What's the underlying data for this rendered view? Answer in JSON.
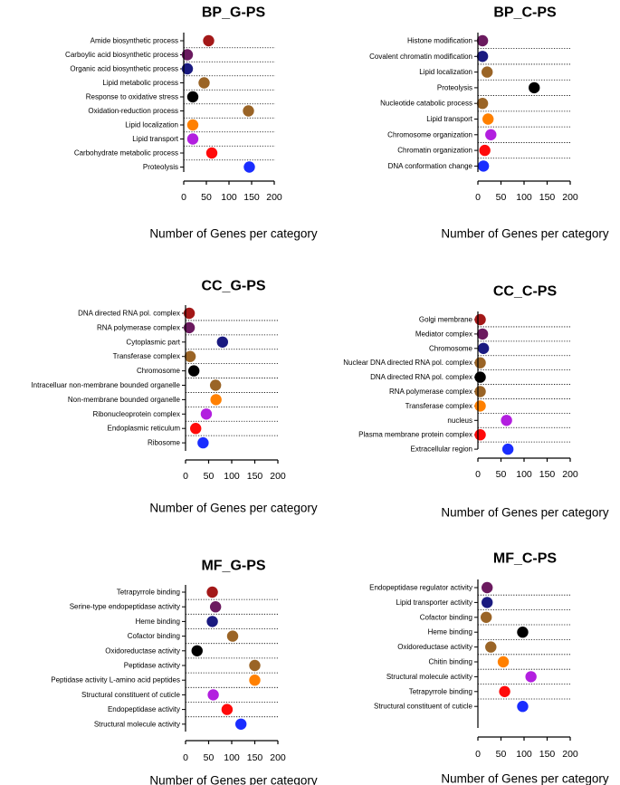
{
  "colors": {
    "maroon": "#a31818",
    "purple": "#6b1a5f",
    "navy": "#1a1a80",
    "brown": "#9a6426",
    "black": "#000000",
    "orange": "#ff8000",
    "violet": "#b21fdf",
    "red": "#ff0a0a",
    "blue": "#1a2dff"
  },
  "chart_data": [
    {
      "type": "scatter",
      "title": "BP_G-PS",
      "xlabel": "Number of Genes per category",
      "xlim": [
        0,
        200
      ],
      "xticks": [
        0,
        50,
        100,
        150,
        200
      ],
      "categories": [
        "Amide biosynthetic process",
        "Carboylic acid biosynthetic process",
        "Organic acid biosynthetic process",
        "Lipid metabolic process",
        "Response to oxidative stress",
        "Oxidation-reduction process",
        "Lipid localization",
        "Lipid transport",
        "Carbohydrate metabolic process",
        "Proteolysis"
      ],
      "values": [
        55,
        8,
        8,
        45,
        20,
        143,
        20,
        20,
        62,
        145
      ],
      "colors": [
        "maroon",
        "purple",
        "navy",
        "brown",
        "black",
        "brown",
        "orange",
        "violet",
        "red",
        "blue"
      ]
    },
    {
      "type": "scatter",
      "title": "BP_C-PS",
      "xlabel": "Number of Genes per category",
      "xlim": [
        0,
        200
      ],
      "xticks": [
        0,
        50,
        100,
        150,
        200
      ],
      "categories": [
        "Histone modification",
        "Covalent chromatin modification",
        "Lipid localization",
        "Proteolysis",
        "Nucleotide catabolic process",
        "Lipid transport",
        "Chromosome organization",
        "Chromatin organization",
        "DNA conformation change"
      ],
      "values": [
        10,
        10,
        20,
        122,
        10,
        22,
        28,
        15,
        12
      ],
      "colors": [
        "purple",
        "navy",
        "brown",
        "black",
        "brown",
        "orange",
        "violet",
        "red",
        "blue"
      ]
    },
    {
      "type": "scatter",
      "title": "CC_G-PS",
      "xlabel": "Number of Genes per category",
      "xlim": [
        0,
        200
      ],
      "xticks": [
        0,
        50,
        100,
        150,
        200
      ],
      "categories": [
        "DNA directed RNA pol. complex",
        "RNA polymerase complex",
        "Cytoplasmic part",
        "Transferase complex",
        "Chromosome",
        "Intracelluar non-membrane bounded organelle",
        "Non-membrane bounded organelle",
        "Ribonucleoprotein complex",
        "Endoplasmic reticulum",
        "Ribosome"
      ],
      "values": [
        8,
        8,
        80,
        10,
        18,
        65,
        66,
        45,
        22,
        38
      ],
      "colors": [
        "maroon",
        "purple",
        "navy",
        "brown",
        "black",
        "brown",
        "orange",
        "violet",
        "red",
        "blue"
      ]
    },
    {
      "type": "scatter",
      "title": "CC_C-PS",
      "xlabel": "Number of Genes per category",
      "xlim": [
        0,
        200
      ],
      "xticks": [
        0,
        50,
        100,
        150,
        200
      ],
      "categories": [
        "Golgi membrane",
        "Mediator complex",
        "Chromosome",
        "Nuclear DNA directed RNA pol. complex",
        "DNA directed RNA pol. complex",
        "RNA polymerase complex",
        "Transferase complex",
        "nucleus",
        "Plasma membrane protein complex",
        "Extracellular region"
      ],
      "values": [
        5,
        10,
        12,
        5,
        5,
        5,
        5,
        62,
        5,
        65
      ],
      "colors": [
        "maroon",
        "purple",
        "navy",
        "brown",
        "black",
        "brown",
        "orange",
        "violet",
        "red",
        "blue"
      ]
    },
    {
      "type": "scatter",
      "title": "MF_G-PS",
      "xlabel": "Number of Genes per category",
      "xlim": [
        0,
        200
      ],
      "xticks": [
        0,
        50,
        100,
        150,
        200
      ],
      "categories": [
        "Tetrapyrrole binding",
        "Serine-type endopeptidase activity",
        "Heme binding",
        "Cofactor binding",
        "Oxidoreductase activity",
        "Peptidase activity",
        "Peptidase activity L-amino acid peptides",
        "Structural constituent of cuticle",
        "Endopeptidase activity",
        "Structural molecule activity"
      ],
      "values": [
        58,
        65,
        58,
        102,
        25,
        150,
        150,
        60,
        90,
        120
      ],
      "colors": [
        "maroon",
        "purple",
        "navy",
        "brown",
        "black",
        "brown",
        "orange",
        "violet",
        "red",
        "blue"
      ]
    },
    {
      "type": "scatter",
      "title": "MF_C-PS",
      "xlabel": "Number of Genes per category",
      "xlim": [
        0,
        200
      ],
      "xticks": [
        0,
        50,
        100,
        150,
        200
      ],
      "categories": [
        "Endopeptidase regulator activity",
        "Lipid transporter activity",
        "Cofactor binding",
        "Heme binding",
        "Oxidoreductase activity",
        "Chitin binding",
        "Structural molecule activity",
        "Tetrapyrrole binding",
        "Structural constituent of cuticle"
      ],
      "values": [
        20,
        20,
        18,
        97,
        28,
        55,
        115,
        58,
        97
      ],
      "colors": [
        "purple",
        "navy",
        "brown",
        "black",
        "brown",
        "orange",
        "violet",
        "red",
        "blue"
      ]
    }
  ]
}
